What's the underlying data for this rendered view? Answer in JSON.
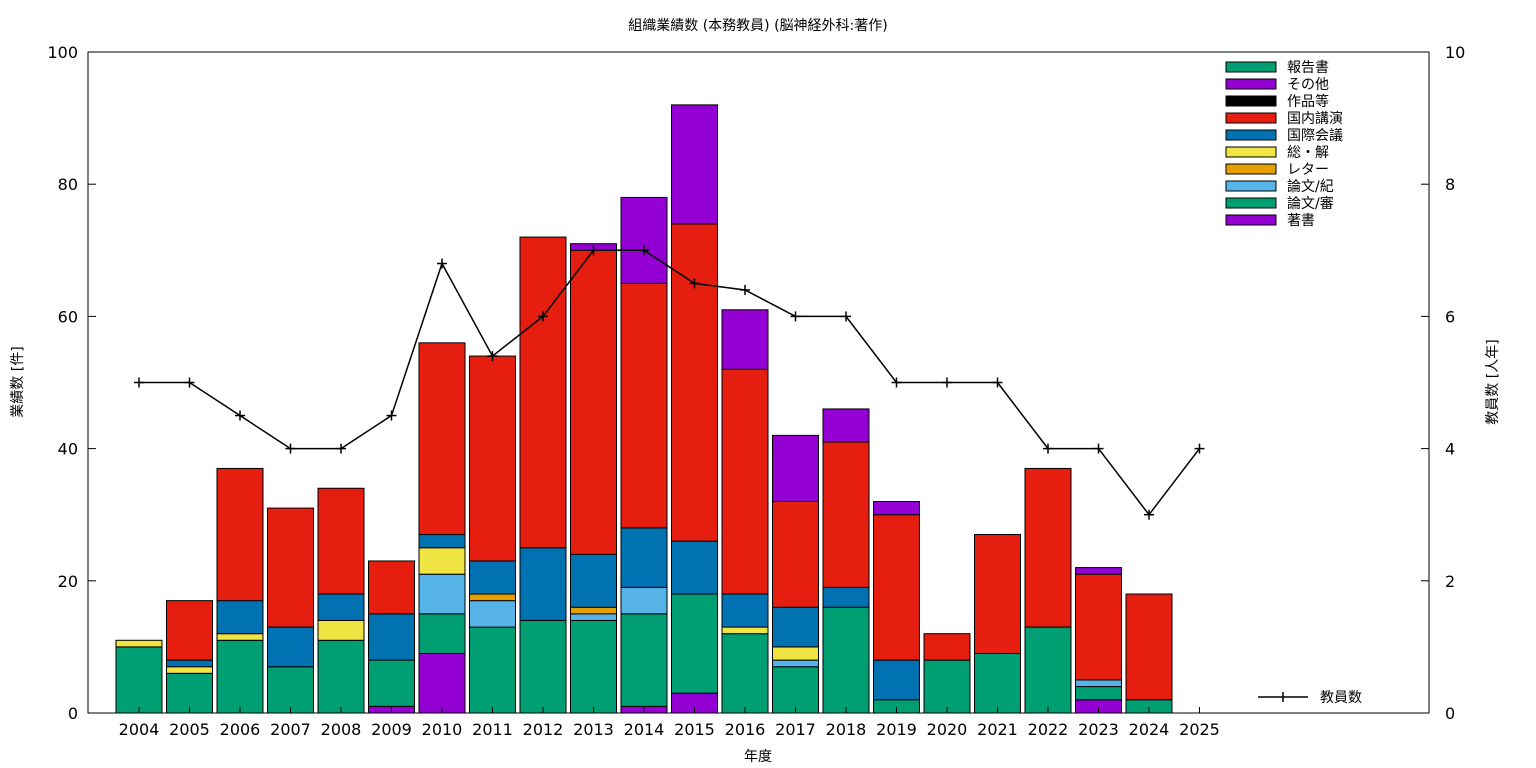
{
  "chart_data": {
    "type": "bar",
    "stacked": true,
    "title": "組織業績数 (本務教員) (脳神経外科:著作)",
    "xlabel": "年度",
    "ylabel": "業績数 [件]",
    "y2label": "教員数 [人年]",
    "ylim": [
      0,
      100
    ],
    "y2lim": [
      0,
      10
    ],
    "yticks": [
      0,
      20,
      40,
      60,
      80,
      100
    ],
    "y2ticks": [
      0,
      2,
      4,
      6,
      8,
      10
    ],
    "grid": false,
    "legend_position": "top-right",
    "categories": [
      "2004",
      "2005",
      "2006",
      "2007",
      "2008",
      "2009",
      "2010",
      "2011",
      "2012",
      "2013",
      "2014",
      "2015",
      "2016",
      "2017",
      "2018",
      "2019",
      "2020",
      "2021",
      "2022",
      "2023",
      "2024",
      "2025"
    ],
    "series": [
      {
        "name": "著書",
        "color": "#9400d3",
        "values": [
          0,
          0,
          0,
          0,
          0,
          1,
          9,
          0,
          0,
          0,
          1,
          3,
          0,
          0,
          0,
          0,
          0,
          0,
          0,
          2,
          0,
          0
        ]
      },
      {
        "name": "論文/審",
        "color": "#009e73",
        "values": [
          10,
          6,
          11,
          7,
          11,
          7,
          6,
          13,
          14,
          14,
          14,
          15,
          12,
          7,
          16,
          2,
          8,
          9,
          13,
          2,
          2,
          0
        ]
      },
      {
        "name": "論文/紀",
        "color": "#56b4e9",
        "values": [
          0,
          0,
          0,
          0,
          0,
          0,
          6,
          4,
          0,
          1,
          4,
          0,
          0,
          1,
          0,
          0,
          0,
          0,
          0,
          1,
          0,
          0
        ]
      },
      {
        "name": "レター",
        "color": "#e69f00",
        "values": [
          0,
          0,
          0,
          0,
          0,
          0,
          0,
          1,
          0,
          1,
          0,
          0,
          0,
          0,
          0,
          0,
          0,
          0,
          0,
          0,
          0,
          0
        ]
      },
      {
        "name": "総・解",
        "color": "#f0e442",
        "values": [
          1,
          1,
          1,
          0,
          3,
          0,
          4,
          0,
          0,
          0,
          0,
          0,
          1,
          2,
          0,
          0,
          0,
          0,
          0,
          0,
          0,
          0
        ]
      },
      {
        "name": "国際会議",
        "color": "#0072b2",
        "values": [
          0,
          1,
          5,
          6,
          4,
          7,
          2,
          5,
          11,
          8,
          9,
          8,
          5,
          6,
          3,
          6,
          0,
          0,
          0,
          0,
          0,
          0
        ]
      },
      {
        "name": "国内講演",
        "color": "#e51e10",
        "values": [
          0,
          9,
          20,
          18,
          16,
          8,
          29,
          31,
          47,
          46,
          37,
          48,
          34,
          16,
          22,
          22,
          4,
          18,
          24,
          16,
          16,
          0
        ]
      },
      {
        "name": "作品等",
        "color": "#000000",
        "values": [
          0,
          0,
          0,
          0,
          0,
          0,
          0,
          0,
          0,
          0,
          0,
          0,
          0,
          0,
          0,
          0,
          0,
          0,
          0,
          0,
          0,
          0
        ]
      },
      {
        "name": "その他",
        "color": "#9400d3",
        "values": [
          0,
          0,
          0,
          0,
          0,
          0,
          0,
          0,
          0,
          1,
          13,
          18,
          9,
          10,
          5,
          2,
          0,
          0,
          0,
          1,
          0,
          0
        ]
      },
      {
        "name": "報告書",
        "color": "#009e73",
        "values": [
          0,
          0,
          0,
          0,
          0,
          0,
          0,
          0,
          0,
          0,
          0,
          0,
          0,
          0,
          0,
          0,
          0,
          0,
          0,
          0,
          0,
          0
        ]
      }
    ],
    "line_series": {
      "name": "教員数",
      "axis": "y2",
      "color": "#000000",
      "values": [
        5,
        5,
        4.5,
        4,
        4,
        4.5,
        6.8,
        5.4,
        6,
        7,
        7,
        6.5,
        6.4,
        6,
        6,
        5,
        5,
        5,
        4,
        4,
        3,
        4
      ]
    }
  }
}
